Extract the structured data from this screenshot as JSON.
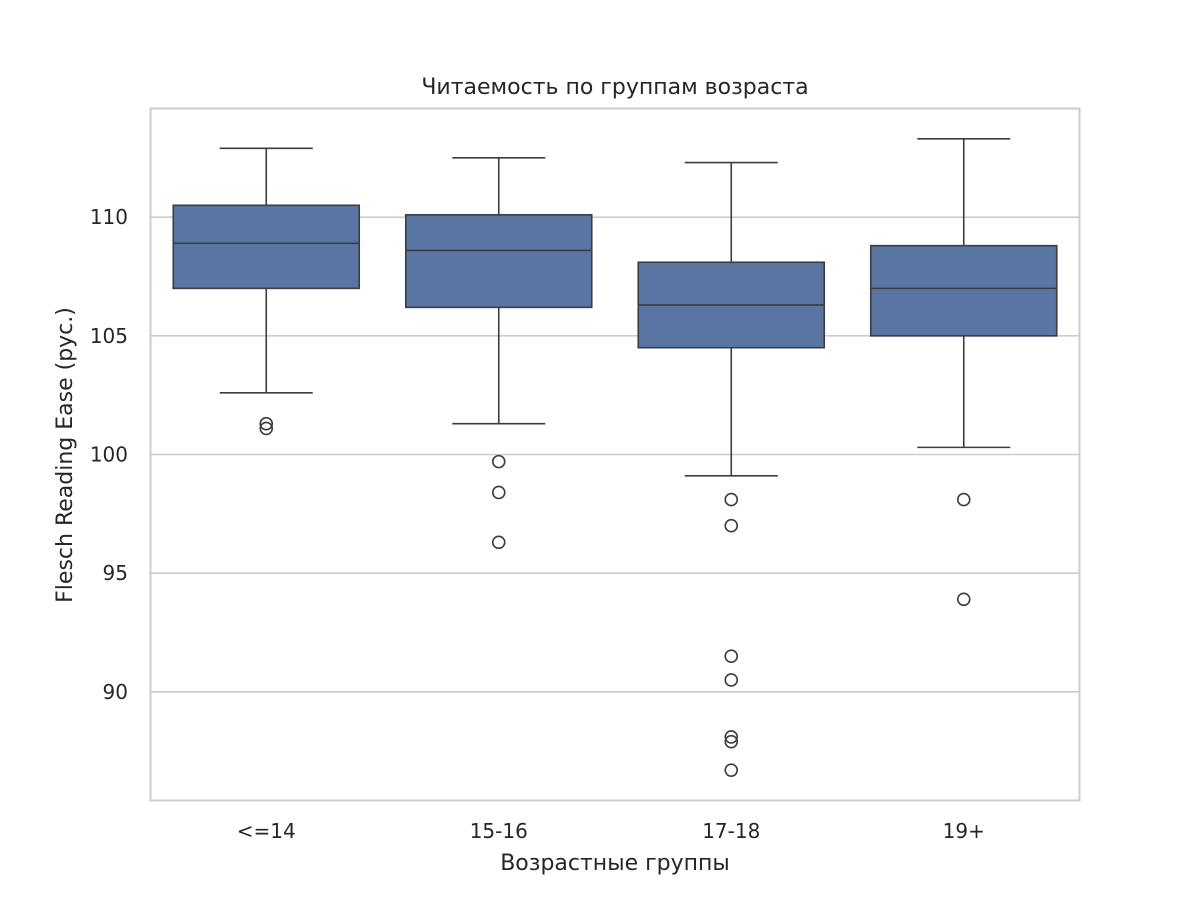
{
  "chart_data": {
    "type": "box",
    "title": "Читаемость по группам возраста",
    "xlabel": "Возрастные группы",
    "ylabel": "Flesch Reading Ease (рус.)",
    "ylim": [
      85.4,
      114.6
    ],
    "yticks": [
      90,
      95,
      100,
      105,
      110
    ],
    "grid": "horizontal",
    "box_color": "#5875a4",
    "line_color": "#3d3d3d",
    "groups": [
      {
        "category": "<=14",
        "whisker_low": 102.6,
        "q1": 107.0,
        "median": 108.9,
        "q3": 110.5,
        "whisker_high": 112.9,
        "outliers": [
          101.3,
          101.1
        ]
      },
      {
        "category": "15-16",
        "whisker_low": 101.3,
        "q1": 106.2,
        "median": 108.6,
        "q3": 110.1,
        "whisker_high": 112.5,
        "outliers": [
          99.7,
          98.4,
          96.3
        ]
      },
      {
        "category": "17-18",
        "whisker_low": 99.1,
        "q1": 104.5,
        "median": 106.3,
        "q3": 108.1,
        "whisker_high": 112.3,
        "outliers": [
          98.1,
          97.0,
          91.5,
          90.5,
          88.1,
          87.9,
          86.7
        ]
      },
      {
        "category": "19+",
        "whisker_low": 100.3,
        "q1": 105.0,
        "median": 107.0,
        "q3": 108.8,
        "whisker_high": 113.3,
        "outliers": [
          98.1,
          93.9
        ]
      }
    ]
  }
}
